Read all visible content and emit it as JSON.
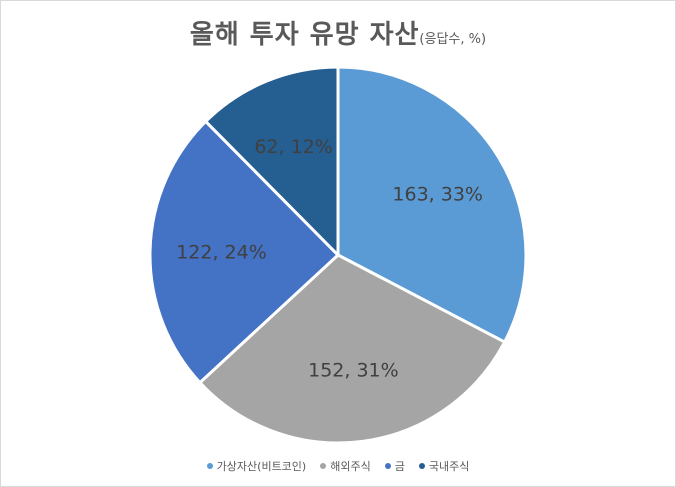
{
  "chart_data": {
    "type": "pie",
    "title": "올해 투자 유망 자산",
    "subtitle": "(응답수, %)",
    "legend_position": "bottom",
    "slices": [
      {
        "name": "가상자산(비트코인)",
        "value": 163,
        "percent": 33,
        "label": "163, 33%",
        "color": "#5b9bd5"
      },
      {
        "name": "해외주식",
        "value": 152,
        "percent": 31,
        "label": "152, 31%",
        "color": "#a5a5a5"
      },
      {
        "name": "금",
        "value": 122,
        "percent": 24,
        "label": "122, 24%",
        "color": "#4472c4"
      },
      {
        "name": "국내주식",
        "value": 62,
        "percent": 12,
        "label": "62, 12%",
        "color": "#255e91"
      }
    ]
  }
}
